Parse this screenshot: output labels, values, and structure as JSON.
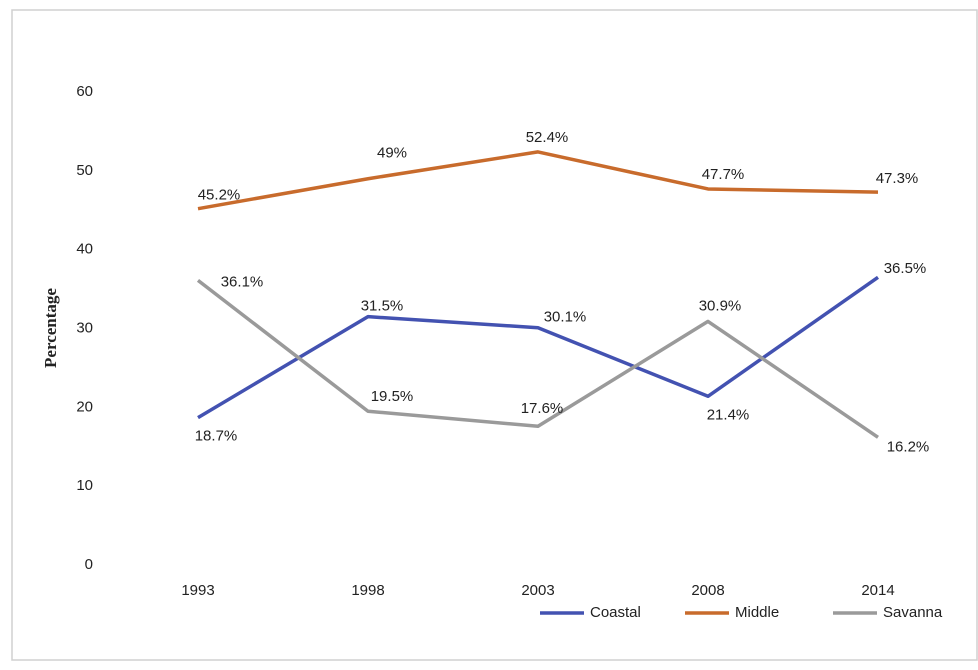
{
  "chart_data": {
    "type": "line",
    "y_label": "Percentage",
    "categories": [
      "1993",
      "1998",
      "2003",
      "2008",
      "2014"
    ],
    "series": [
      {
        "name": "Coastal",
        "color": "#4352b1",
        "values": [
          18.7,
          31.5,
          30.1,
          21.4,
          36.5
        ],
        "value_labels": [
          "18.7%",
          "31.5%",
          "30.1%",
          "21.4%",
          "36.5%"
        ]
      },
      {
        "name": "Middle",
        "color": "#c86b2c",
        "values": [
          45.2,
          49,
          52.4,
          47.7,
          47.3
        ],
        "value_labels": [
          "45.2%",
          "49%",
          "52.4%",
          "47.7%",
          "47.3%"
        ]
      },
      {
        "name": "Savanna",
        "color": "#9a9a9a",
        "values": [
          36.1,
          19.5,
          17.6,
          30.9,
          16.2
        ],
        "value_labels": [
          "36.1%",
          "19.5%",
          "17.6%",
          "30.9%",
          "16.2%"
        ]
      }
    ],
    "ylim": [
      0,
      60
    ],
    "yticks": [
      0,
      10,
      20,
      30,
      40,
      50,
      60
    ],
    "grid": false,
    "legend": "bottom-right"
  }
}
